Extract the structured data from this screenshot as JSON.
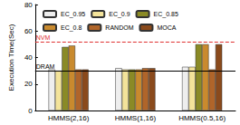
{
  "chart_data": {
    "type": "bar",
    "y_label": "Execution Time(Sec)",
    "categories": [
      "HMMS(2,16)",
      "HMMS(1,16)",
      "HMMS(0.5,16)"
    ],
    "series": [
      {
        "name": "EC_0.95",
        "color": "#eeeeee",
        "values": [
          31,
          32,
          33
        ]
      },
      {
        "name": "EC_0.9",
        "color": "#f3e39a",
        "values": [
          30,
          31,
          33
        ]
      },
      {
        "name": "EC_0.85",
        "color": "#8a8a26",
        "values": [
          48,
          31,
          50
        ]
      },
      {
        "name": "EC_0.8",
        "color": "#c98a2e",
        "values": [
          49,
          31,
          50
        ]
      },
      {
        "name": "RANDOM",
        "color": "#b0652a",
        "values": [
          31,
          32,
          31
        ]
      },
      {
        "name": "MOCA",
        "color": "#8a4a1c",
        "values": [
          31,
          32,
          50
        ]
      }
    ],
    "annotations": [
      {
        "text": "NVM",
        "y": 52,
        "color": "#e03030",
        "line_style": "dashed"
      },
      {
        "text": "DRAM",
        "y": 30,
        "color": "#000000",
        "line_style": "solid"
      }
    ],
    "ylim": [
      0,
      80
    ],
    "yticks": [
      0,
      20,
      40,
      60,
      80
    ],
    "grid": false,
    "legend": "upper left"
  }
}
